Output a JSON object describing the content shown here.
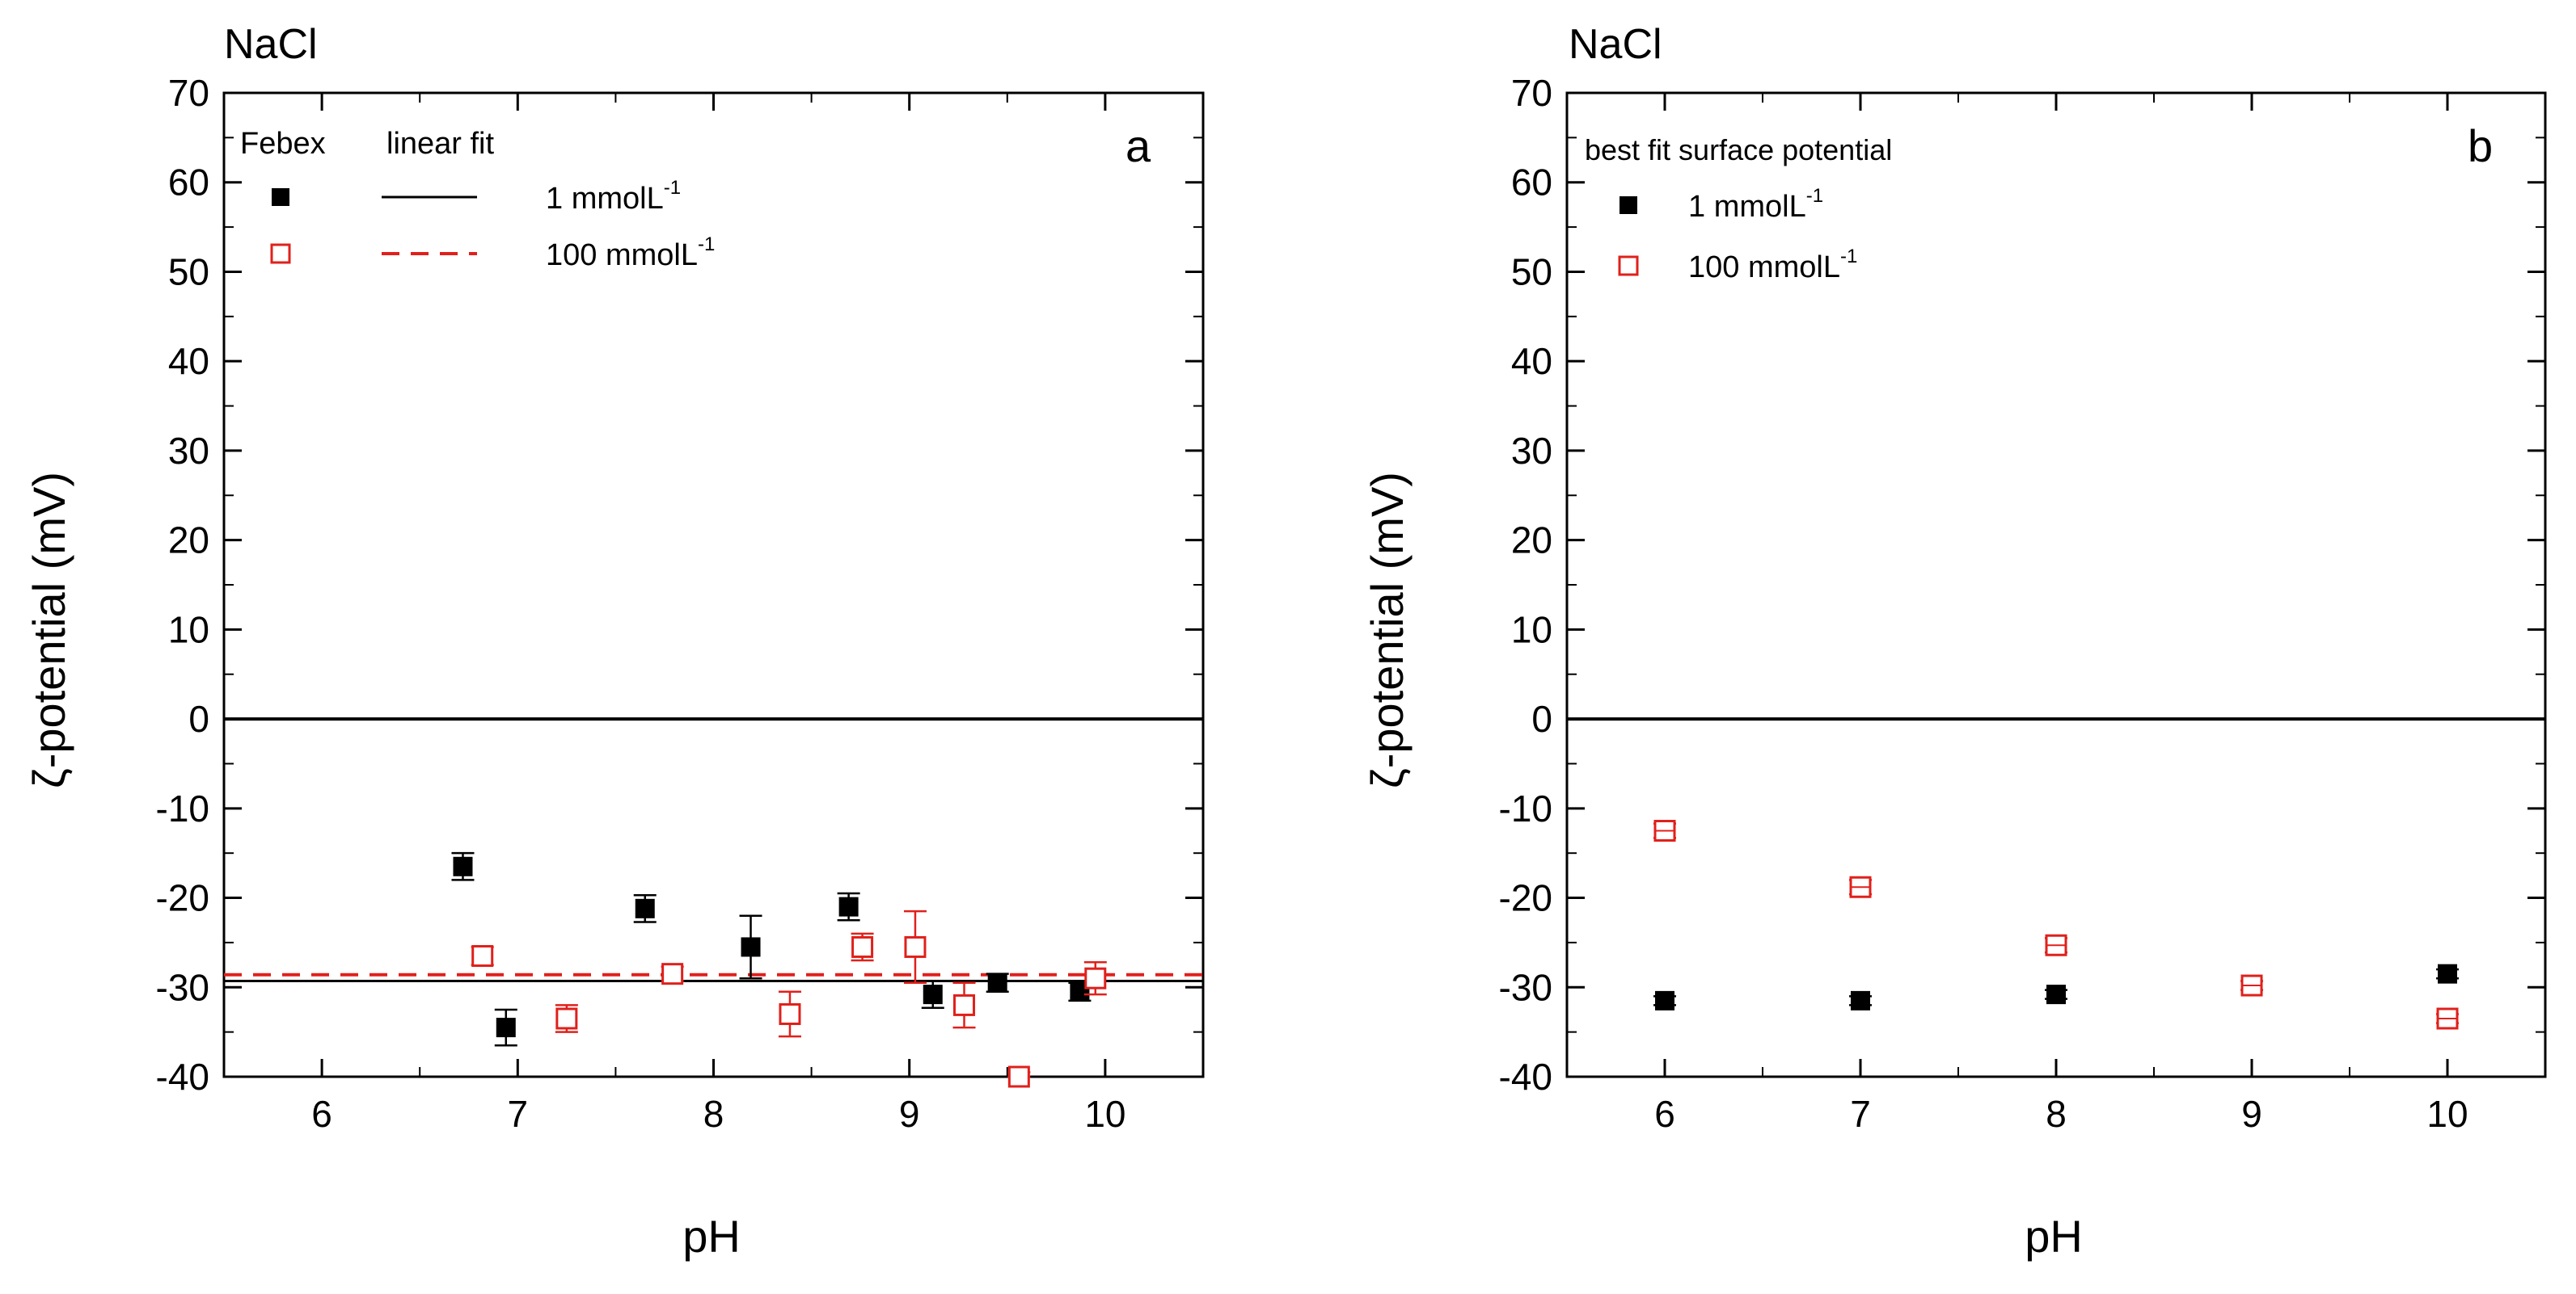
{
  "chart_data": [
    {
      "type": "scatter",
      "panel": "a",
      "title": "NaCl",
      "xlabel": "pH",
      "ylabel": "ζ-potential (mV)",
      "xlim": [
        5.5,
        10.5
      ],
      "ylim": [
        -40,
        70
      ],
      "xticks": [
        6,
        7,
        8,
        9,
        10
      ],
      "yticks": [
        70,
        60,
        50,
        40,
        30,
        20,
        10,
        0,
        -10,
        -20,
        -30,
        -40
      ],
      "legend": {
        "header_symbols": "Febex",
        "header_lines": "linear fit",
        "placement": "top-left",
        "items": [
          {
            "label": "1 mmolL",
            "sup": "-1"
          },
          {
            "label": "100 mmolL",
            "sup": "-1"
          }
        ]
      },
      "series": [
        {
          "name": "1 mmolL-1",
          "marker": "filled-square",
          "color": "#000000",
          "x": [
            6.72,
            6.94,
            7.65,
            8.19,
            8.69,
            9.12,
            9.45,
            9.87
          ],
          "y": [
            -16.5,
            -34.5,
            -21.2,
            -25.5,
            -21.0,
            -30.8,
            -29.5,
            -30.5
          ],
          "err": [
            1.5,
            2.0,
            1.5,
            3.5,
            1.5,
            1.5,
            1.0,
            1.0
          ]
        },
        {
          "name": "100 mmolL-1",
          "marker": "open-square",
          "color": "#e0201b",
          "x": [
            6.82,
            7.25,
            7.79,
            8.39,
            8.76,
            9.03,
            9.28,
            9.56,
            9.95
          ],
          "y": [
            -26.5,
            -33.5,
            -28.5,
            -33.0,
            -25.5,
            -25.5,
            -32.0,
            -40.0,
            -29.0
          ],
          "err": [
            1.0,
            1.5,
            0.8,
            2.5,
            1.5,
            4.0,
            2.5,
            0.5,
            1.8
          ]
        }
      ],
      "fits": [
        {
          "name": "linear fit 1 mmolL-1",
          "style": "solid",
          "color": "#000000",
          "y": -29.3
        },
        {
          "name": "linear fit 100 mmolL-1",
          "style": "dashed",
          "color": "#e0201b",
          "y": -28.6
        }
      ],
      "reference_line": {
        "y": 0
      }
    },
    {
      "type": "scatter",
      "panel": "b",
      "title": "NaCl",
      "xlabel": "pH",
      "ylabel": "ζ-potential (mV)",
      "xlim": [
        5.5,
        10.5
      ],
      "ylim": [
        -40,
        70
      ],
      "xticks": [
        6,
        7,
        8,
        9,
        10
      ],
      "yticks": [
        70,
        60,
        50,
        40,
        30,
        20,
        10,
        0,
        -10,
        -20,
        -30,
        -40
      ],
      "legend": {
        "header": "best fit surface potential",
        "placement": "top-left",
        "items": [
          {
            "label": "1 mmolL",
            "sup": "-1"
          },
          {
            "label": "100 mmolL",
            "sup": "-1"
          }
        ]
      },
      "series": [
        {
          "name": "1 mmolL-1",
          "marker": "filled-square",
          "color": "#000000",
          "x": [
            6,
            7,
            8,
            10
          ],
          "y": [
            -31.5,
            -31.5,
            -30.8,
            -28.5
          ],
          "err": [
            0.5,
            0.5,
            0.5,
            0.5
          ]
        },
        {
          "name": "100 mmolL-1",
          "marker": "open-square-cross",
          "color": "#e0201b",
          "x": [
            6,
            7,
            8,
            9,
            10
          ],
          "y": [
            -12.5,
            -18.8,
            -25.3,
            -29.8,
            -33.5
          ],
          "err": [
            0.8,
            0.8,
            0.8,
            0.5,
            0.5
          ]
        }
      ],
      "reference_line": {
        "y": 0
      }
    }
  ]
}
